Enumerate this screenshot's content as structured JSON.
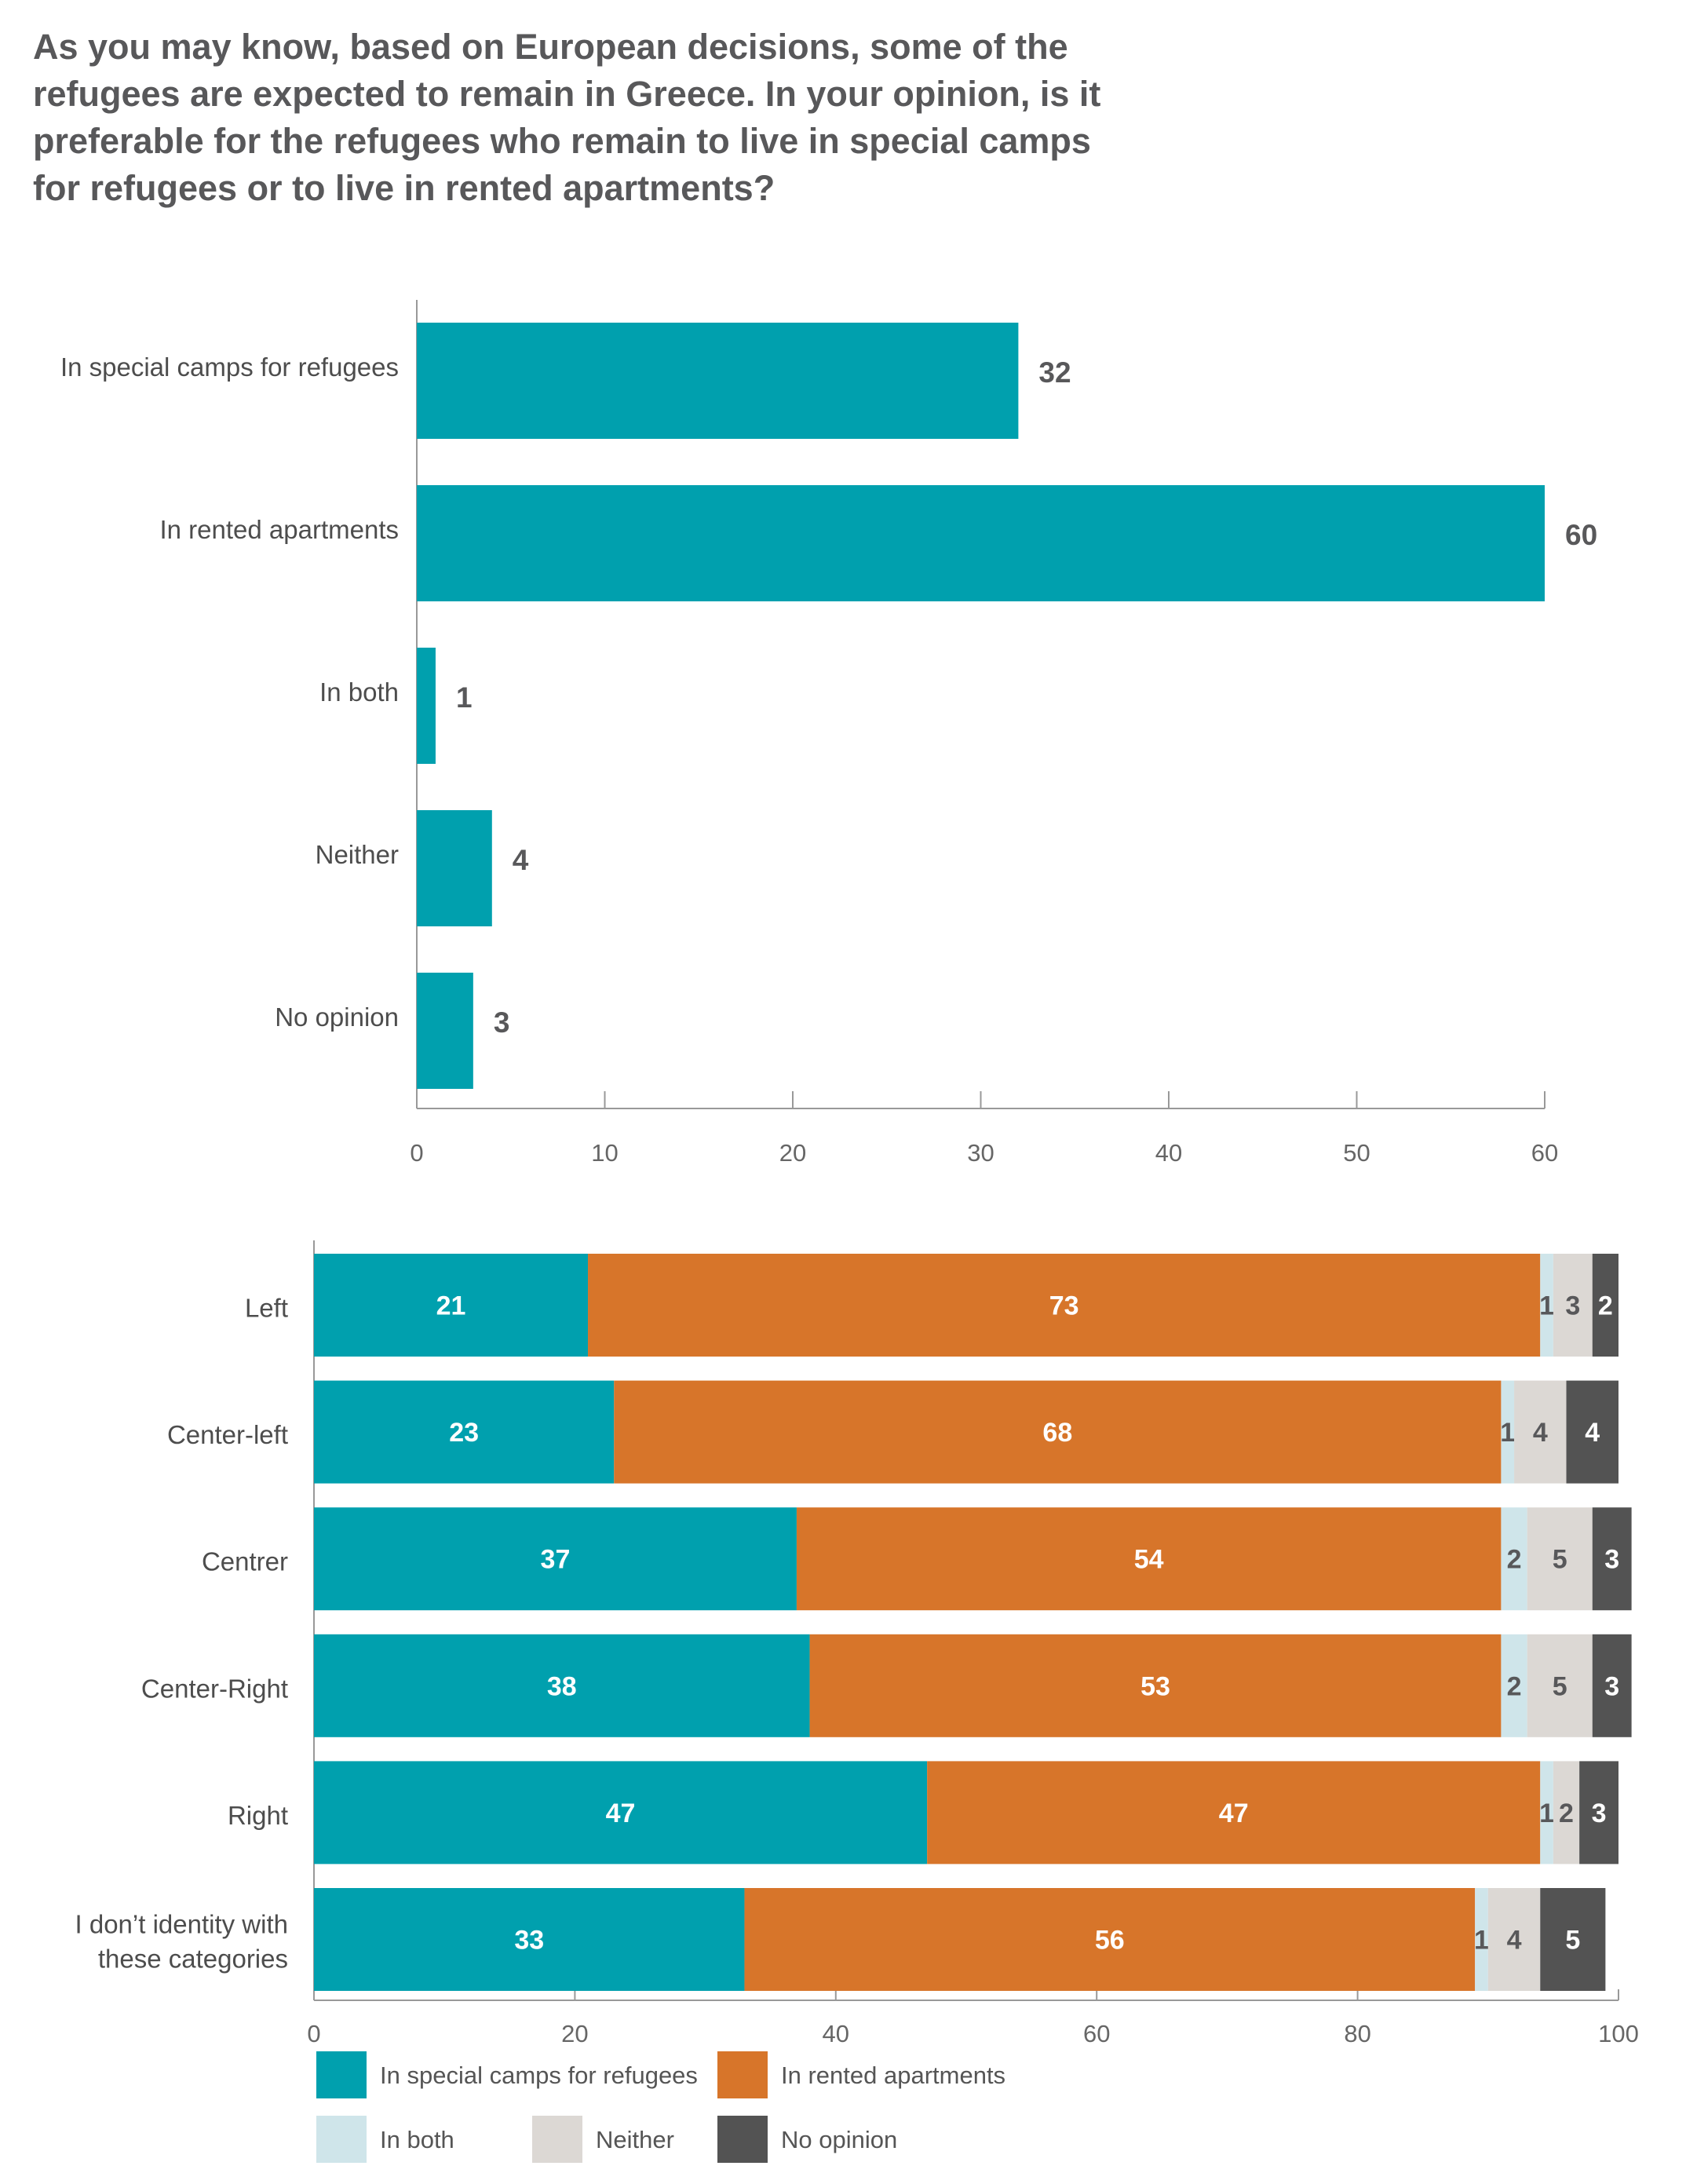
{
  "question": "As you may know, based on European decisions, some of  the refugees are expected to remain in Greece. In your opinion, is it preferable for the refugees who remain to live in special camps for refugees or to live in rented apartments?",
  "colors": {
    "camps": "#00a0ae",
    "apartments": "#d7752a",
    "both": "#cfe5ea",
    "neither": "#dcd8d4",
    "noopinion": "#535353",
    "axis": "#999999"
  },
  "chart_data": [
    {
      "type": "bar",
      "orientation": "horizontal",
      "categories": [
        "In special camps for refugees",
        "In rented apartments",
        "In both",
        "Neither",
        "No opinion"
      ],
      "values": [
        32,
        60,
        1,
        4,
        3
      ],
      "xlim": [
        0,
        60
      ],
      "xticks": [
        0,
        10,
        20,
        30,
        40,
        50,
        60
      ],
      "grid": false
    },
    {
      "type": "bar",
      "orientation": "horizontal",
      "stacked": true,
      "categories": [
        "Left",
        "Center-left",
        "Centrer",
        "Center-Right",
        "Right",
        "I don’t identity with these categories"
      ],
      "series": [
        {
          "name": "In special camps for refugees",
          "color_key": "camps",
          "values": [
            21,
            23,
            37,
            38,
            47,
            33
          ]
        },
        {
          "name": "In rented apartments",
          "color_key": "apartments",
          "values": [
            73,
            68,
            54,
            53,
            47,
            56
          ]
        },
        {
          "name": "In both",
          "color_key": "both",
          "values": [
            1,
            1,
            2,
            2,
            1,
            1
          ]
        },
        {
          "name": "Neither",
          "color_key": "neither",
          "values": [
            3,
            4,
            5,
            5,
            2,
            4
          ]
        },
        {
          "name": "No opinion",
          "color_key": "noopinion",
          "values": [
            2,
            4,
            3,
            3,
            3,
            5
          ]
        }
      ],
      "xlim": [
        0,
        100
      ],
      "xticks": [
        0,
        20,
        40,
        60,
        80,
        100
      ],
      "legend": "bottom",
      "grid": false
    }
  ]
}
